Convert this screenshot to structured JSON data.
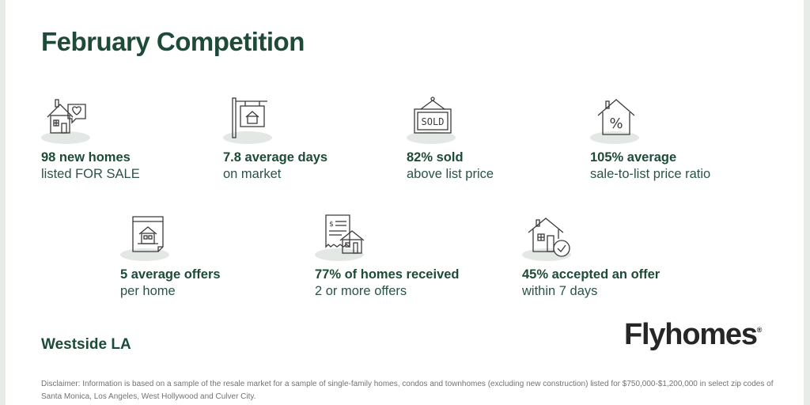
{
  "title": "February Competition",
  "stats": [
    {
      "icon": "house-heart-icon",
      "line1": "98 new homes",
      "line2": "listed FOR SALE"
    },
    {
      "icon": "for-sale-sign-icon",
      "line1": "7.8 average days",
      "line2": "on market"
    },
    {
      "icon": "sold-sign-icon",
      "line1": "82% sold",
      "line2": "above list price",
      "sign_text": "SOLD"
    },
    {
      "icon": "house-percent-icon",
      "line1": "105% average",
      "line2": "sale-to-list price ratio",
      "badge_text": "%"
    },
    {
      "icon": "house-document-icon",
      "line1": "5  average offers",
      "line2": "per home"
    },
    {
      "icon": "receipt-house-icon",
      "line1": "77% of homes received",
      "line2": "2 or more offers",
      "badge_text": "$"
    },
    {
      "icon": "house-check-icon",
      "line1": "45% accepted an offer",
      "line2": "within 7 days"
    }
  ],
  "location": "Westside LA",
  "brand": {
    "name": "Flyhomes",
    "reg": "®"
  },
  "disclaimer": "Disclaimer: Information is based on a sample of the resale market for a sample of single-family homes, condos and townhomes (excluding new construction) listed for $750,000-$1,200,000 in select zip codes of Santa Monica, Los Angeles, West Hollywood and Culver City.",
  "colors": {
    "green": "#1d4b37",
    "shadow": "#e4e8e5",
    "brand": "#262626",
    "muted": "#6f7572"
  }
}
